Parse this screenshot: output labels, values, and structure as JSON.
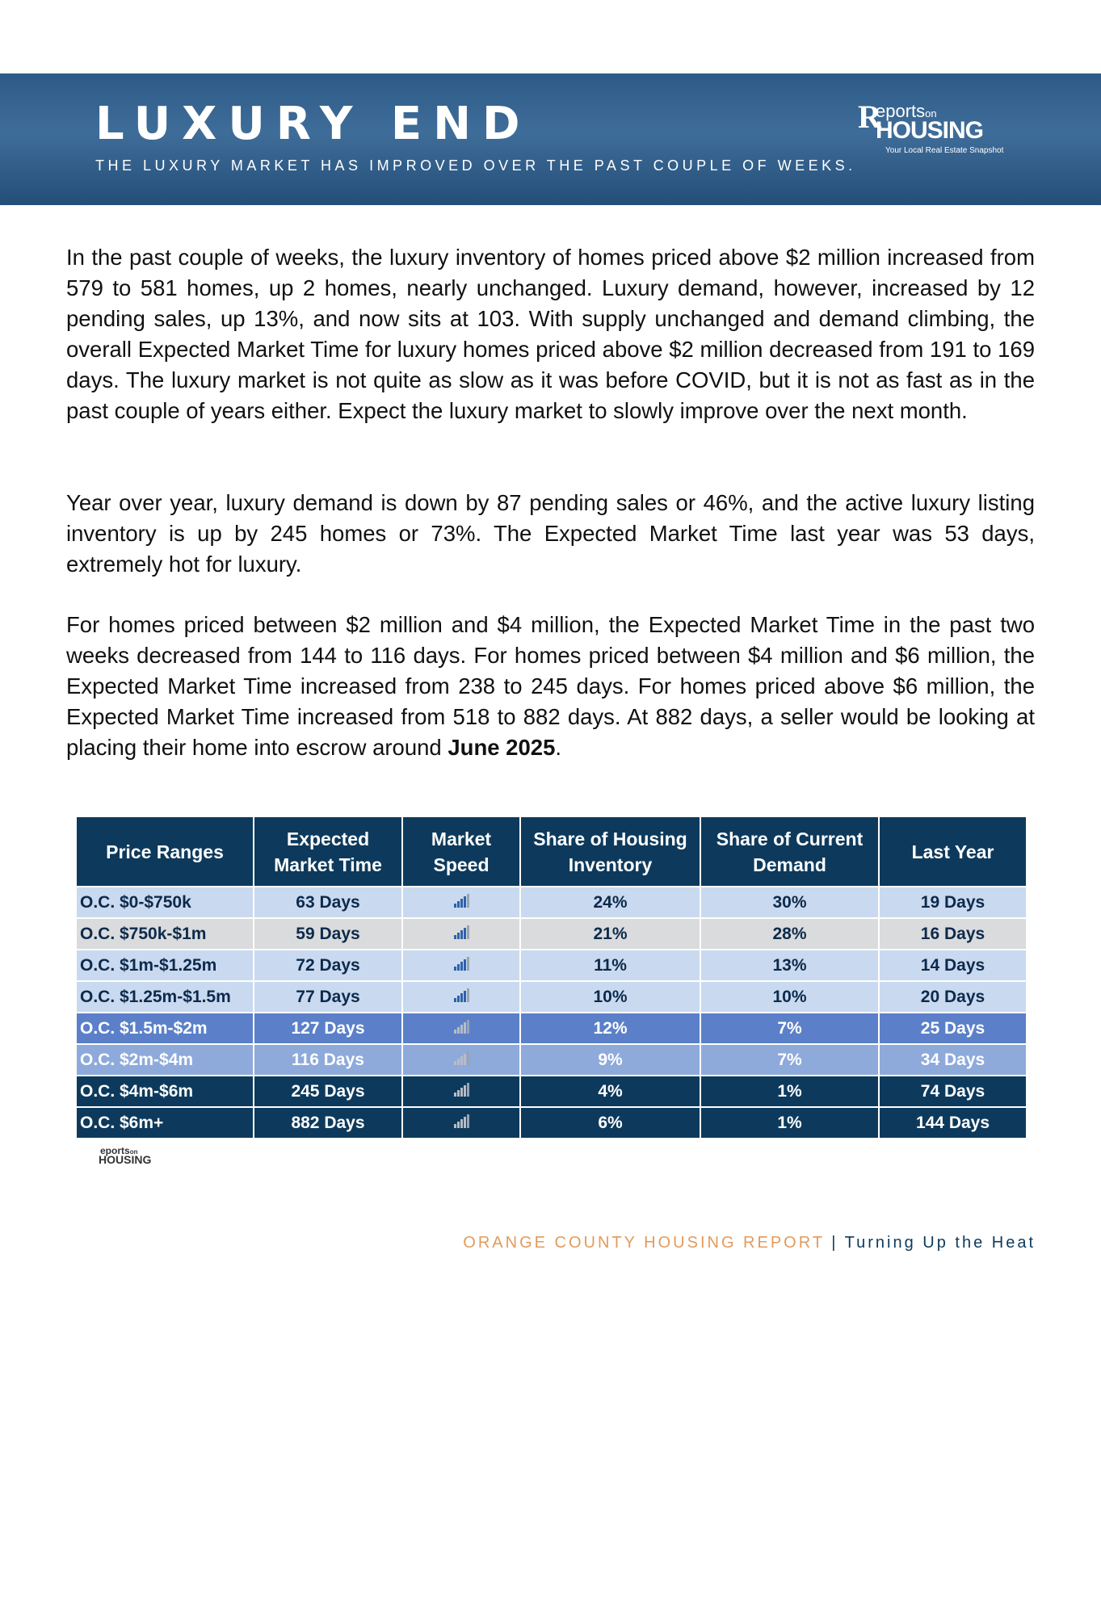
{
  "header": {
    "title": "LUXURY END",
    "subtitle": "THE LUXURY MARKET HAS IMPROVED OVER THE PAST COUPLE OF WEEKS.",
    "logo": {
      "brand_top": "eports",
      "brand_on": "on",
      "brand_main": "HOUSING",
      "tagline": "Your Local Real Estate Snapshot"
    }
  },
  "paragraphs": [
    "In the past couple of weeks, the luxury inventory of homes priced above $2 million increased from 579 to 581 homes, up 2 homes, nearly unchanged. Luxury demand, however, increased by 12 pending sales, up 13%, and now sits at 103. With supply unchanged and demand climbing, the overall Expected Market Time for luxury homes priced above $2 million decreased from 191 to 169 days. The luxury market is not quite as slow as it was before COVID, but it is not as fast as in the past couple of years either. Expect the luxury market to slowly improve over the next month.",
    "Year over year, luxury demand is down by 87 pending sales or 46%, and the active luxury listing inventory is up by 245 homes or 73%. The Expected Market Time last year was 53 days, extremely hot for luxury.",
    {
      "text": "For homes priced between $2 million and $4 million, the Expected Market Time in the past two weeks decreased from 144 to 116 days. For homes priced between $4 million and $6 million, the Expected Market Time increased from 238 to 245 days. For homes priced above $6 million, the Expected Market Time increased from 518 to 882 days. At 882 days, a seller would be looking at placing their home into escrow around ",
      "bold": "June 2025",
      "end": "."
    }
  ],
  "table": {
    "headers": [
      "Price Ranges",
      "Expected Market Time",
      "Market Speed",
      "Share of Housing Inventory",
      "Share of Current Demand",
      "Last Year"
    ],
    "rows": [
      [
        "O.C. $0-$750k",
        "63 Days",
        "24%",
        "30%",
        "19 Days"
      ],
      [
        "O.C. $750k-$1m",
        "59 Days",
        "21%",
        "28%",
        "16 Days"
      ],
      [
        "O.C. $1m-$1.25m",
        "72 Days",
        "11%",
        "13%",
        "14 Days"
      ],
      [
        "O.C. $1.25m-$1.5m",
        "77 Days",
        "10%",
        "10%",
        "20 Days"
      ],
      [
        "O.C. $1.5m-$2m",
        "127 Days",
        "12%",
        "7%",
        "25 Days"
      ],
      [
        "O.C. $2m-$4m",
        "116 Days",
        "9%",
        "7%",
        "34 Days"
      ],
      [
        "O.C. $4m-$6m",
        "245 Days",
        "4%",
        "1%",
        "74 Days"
      ],
      [
        "O.C. $6m+",
        "882 Days",
        "6%",
        "1%",
        "144 Days"
      ]
    ],
    "logo": {
      "top": "eports",
      "on": "on",
      "main": "HOUSING"
    }
  },
  "footer": {
    "left": "ORANGE COUNTY HOUSING REPORT",
    "separator": "|",
    "right": "Turning Up the Heat"
  }
}
